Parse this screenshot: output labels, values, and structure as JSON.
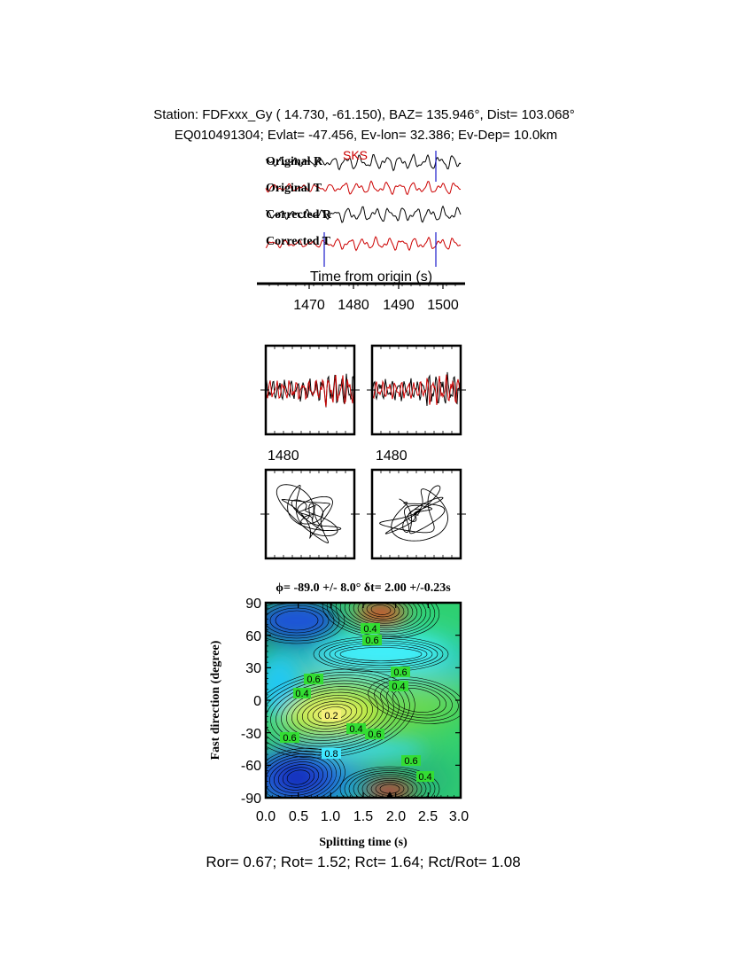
{
  "header": {
    "line1": "Station: FDFxxx_Gy (  14.730,  -61.150), BAZ=  135.946°, Dist=  103.068°",
    "line2": "EQ010491304; Evlat= -47.456, Ev-lon=  32.386; Ev-Dep= 10.0km"
  },
  "traces": {
    "labels": [
      "Original R",
      "Original T",
      "Corrected R",
      "Corrected T"
    ],
    "phase": "SKS",
    "xlabel": "Time from origin (s)",
    "ticks": [
      "1470",
      "1480",
      "1490",
      "1500"
    ],
    "colors": {
      "radial": "#000000",
      "transverse": "#cc0000",
      "marker": "#1a1acc"
    }
  },
  "waveform_panels": {
    "tick_labels": [
      "1480",
      "1480"
    ]
  },
  "grid_search": {
    "title": "ϕ= -89.0 +/- 8.0° δt= 2.00 +/-0.23s",
    "xlabel": "Splitting time (s)",
    "ylabel": "Fast direction (degree)",
    "xticks": [
      "0.0",
      "0.5",
      "1.0",
      "1.5",
      "2.0",
      "2.5",
      "3.0"
    ],
    "yticks": [
      "90",
      "60",
      "30",
      "0",
      "-30",
      "-60",
      "-90"
    ],
    "contour_labels": [
      "0.4",
      "0.6",
      "0.6",
      "0.4",
      "0.6",
      "0.4",
      "0.2",
      "0.4",
      "0.6",
      "0.6",
      "0.8",
      "0.6",
      "0.4"
    ],
    "label_color": "#33dd33"
  },
  "footer": "Ror= 0.67; Rot= 1.52; Rct= 1.64; Rct/Rot= 1.08",
  "chart_data": [
    {
      "type": "line",
      "xlabel": "Time from origin (s)",
      "series": [
        {
          "name": "Original R"
        },
        {
          "name": "Original T"
        },
        {
          "name": "Corrected R"
        },
        {
          "name": "Corrected T"
        }
      ],
      "xticks": [
        1470,
        1480,
        1490,
        1500
      ],
      "annotations": [
        "SKS"
      ]
    },
    {
      "type": "heatmap",
      "title": "ϕ= -89.0 +/- 8.0° δt= 2.00 +/-0.23s",
      "xlabel": "Splitting time (s)",
      "ylabel": "Fast direction (degree)",
      "xlim": [
        0,
        3
      ],
      "ylim": [
        -90,
        90
      ],
      "best_fit": {
        "phi": -89.0,
        "phi_err": 8.0,
        "dt": 2.0,
        "dt_err": 0.23
      },
      "contour_levels": [
        0.2,
        0.4,
        0.6,
        0.8
      ]
    }
  ]
}
